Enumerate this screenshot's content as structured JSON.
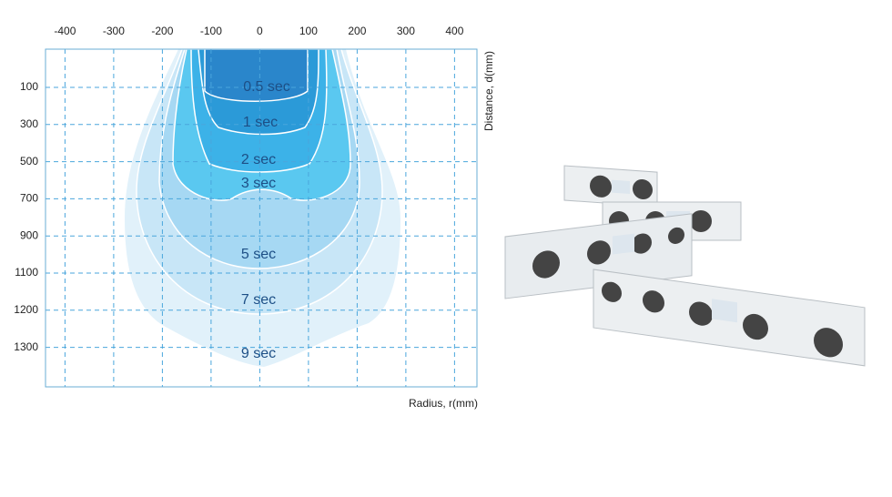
{
  "chart_data": {
    "type": "contour",
    "x_label": "Radius, r(mm)",
    "y_label": "Distance, d(mm)",
    "xlim": [
      -440,
      446
    ],
    "xticks": [
      -400,
      -300,
      -200,
      -100,
      0,
      100,
      200,
      300,
      400
    ],
    "y_categories": [
      "100",
      "300",
      "500",
      "700",
      "900",
      "1100",
      "1200",
      "1300"
    ],
    "levels": [
      "0.5 sec",
      "1 sec",
      "2 sec",
      "3 sec",
      "5 sec",
      "7 sec",
      "9 sec"
    ],
    "grid": true
  }
}
